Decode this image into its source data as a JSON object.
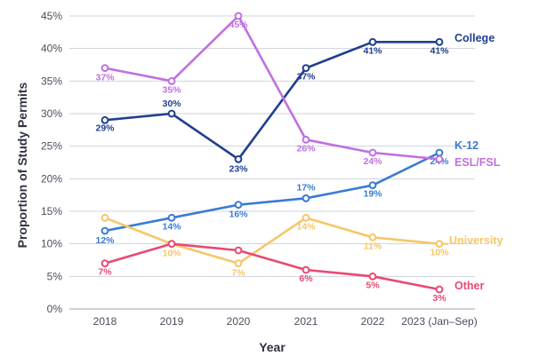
{
  "chart_data": {
    "type": "line",
    "title": "",
    "xlabel": "Year",
    "ylabel": "Proportion of Study Permits",
    "categories": [
      "2018",
      "2019",
      "2020",
      "2021",
      "2022",
      "2023 (Jan–Sep)"
    ],
    "ylim": [
      0,
      45
    ],
    "yticks": [
      0,
      5,
      10,
      15,
      20,
      25,
      30,
      35,
      40,
      45
    ],
    "ytick_suffix": "%",
    "grid": true,
    "legend": "labels at line ends (right)",
    "series": [
      {
        "name": "College",
        "color": "#1f3f8f",
        "values": [
          29,
          30,
          23,
          37,
          41,
          41
        ],
        "labels": [
          "29%",
          "30%",
          "23%",
          "37%",
          "41%",
          "41%"
        ]
      },
      {
        "name": "K-12",
        "color": "#3a7bd5",
        "values": [
          12,
          14,
          16,
          17,
          19,
          24
        ],
        "labels": [
          "12%",
          "14%",
          "16%",
          "17%",
          "19%",
          "24%"
        ]
      },
      {
        "name": "ESL/FSL",
        "color": "#c070e0",
        "values": [
          37,
          35,
          45,
          26,
          24,
          23
        ],
        "labels": [
          "37%",
          "35%",
          "45%",
          "26%",
          "24%",
          ""
        ]
      },
      {
        "name": "University",
        "color": "#f6c667",
        "values": [
          14,
          10,
          7,
          14,
          11,
          10
        ],
        "labels": [
          "",
          "10%",
          "7%",
          "14%",
          "11%",
          "10%"
        ]
      },
      {
        "name": "Other",
        "color": "#e84a72",
        "values": [
          7,
          10,
          9,
          6,
          5,
          3
        ],
        "labels": [
          "7%",
          "",
          "",
          "6%",
          "5%",
          "3%"
        ]
      }
    ]
  }
}
